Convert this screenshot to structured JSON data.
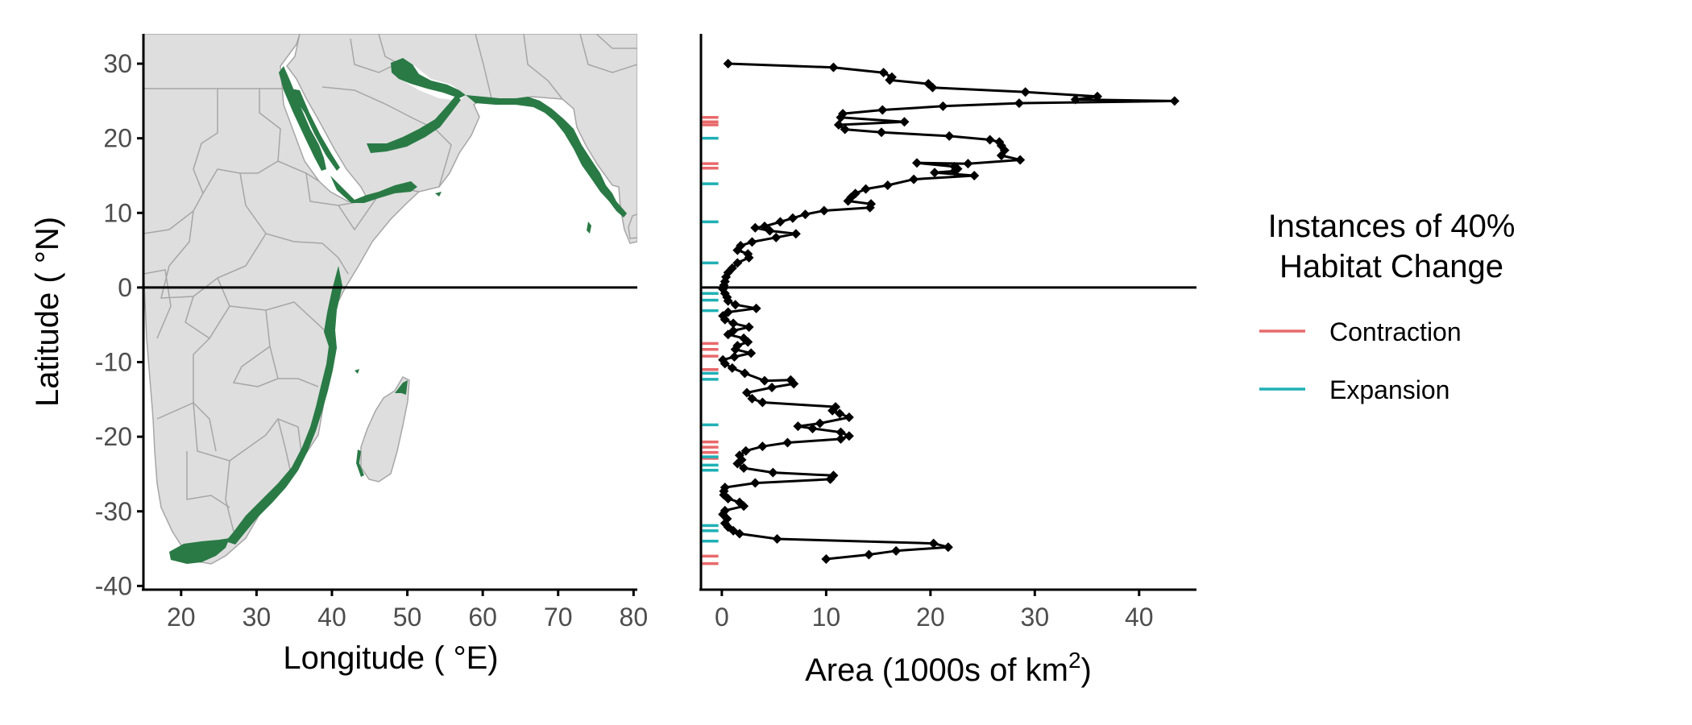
{
  "colors": {
    "land": "#dedede",
    "border": "#a6a6a6",
    "habitat": "#2a7a46",
    "line": "#000000",
    "contraction": "#e8696b",
    "expansion": "#1fb0b5"
  },
  "map": {
    "xlabel": "Longitude ( °E)",
    "ylabel": "Latitude ( °N)",
    "xticks": [
      20,
      30,
      40,
      50,
      60,
      70,
      80
    ],
    "yticks": [
      30,
      20,
      10,
      0,
      -10,
      -20,
      -30,
      -40
    ],
    "xlim": [
      15,
      80.5
    ],
    "ylim": [
      -40.5,
      34
    ]
  },
  "chart_data": {
    "type": "line",
    "xlabel": "Area (1000s of km",
    "xlabel_sup": "2",
    "xlabel_close": ")",
    "xticks": [
      0,
      10,
      20,
      30,
      40
    ],
    "xlim": [
      -2,
      45.5
    ],
    "ylim": [
      -40.5,
      34
    ],
    "reference_line": 0,
    "series": [
      {
        "name": "Area",
        "points": [
          [
            0.6,
            30
          ],
          [
            10.7,
            29.5
          ],
          [
            15.5,
            28.8
          ],
          [
            16.3,
            28.2
          ],
          [
            16.1,
            27.8
          ],
          [
            19.8,
            27.3
          ],
          [
            20.2,
            26.8
          ],
          [
            29.1,
            26.2
          ],
          [
            36,
            25.6
          ],
          [
            33.9,
            25.2
          ],
          [
            43.4,
            25
          ],
          [
            28.5,
            24.7
          ],
          [
            21.2,
            24.3
          ],
          [
            15.4,
            23.8
          ],
          [
            11.6,
            23.3
          ],
          [
            11.4,
            22.8
          ],
          [
            17.5,
            22.2
          ],
          [
            11.2,
            21.8
          ],
          [
            11.8,
            21.2
          ],
          [
            15.3,
            20.8
          ],
          [
            21.8,
            20.3
          ],
          [
            25.7,
            19.8
          ],
          [
            26.6,
            19.5
          ],
          [
            26.8,
            19
          ],
          [
            27.1,
            18.4
          ],
          [
            26.8,
            17.7
          ],
          [
            28.6,
            17.1
          ],
          [
            23.6,
            16.6
          ],
          [
            18.7,
            16.7
          ],
          [
            22.3,
            16.2
          ],
          [
            22.6,
            15.9
          ],
          [
            22.3,
            15.6
          ],
          [
            20.4,
            15.4
          ],
          [
            24.2,
            15
          ],
          [
            18.4,
            14.5
          ],
          [
            15.9,
            13.7
          ],
          [
            13.8,
            13.2
          ],
          [
            12.8,
            12.6
          ],
          [
            12.4,
            12.1
          ],
          [
            12.1,
            11.6
          ],
          [
            14.3,
            11.2
          ],
          [
            14.2,
            10.7
          ],
          [
            9.8,
            10.3
          ],
          [
            8,
            9.8
          ],
          [
            6.8,
            9.3
          ],
          [
            5.6,
            8.8
          ],
          [
            4.1,
            8.2
          ],
          [
            3.2,
            8
          ],
          [
            4.6,
            7.6
          ],
          [
            7.1,
            7.2
          ],
          [
            5.2,
            6.7
          ],
          [
            2.9,
            6.1
          ],
          [
            1.8,
            5.6
          ],
          [
            1.5,
            5
          ],
          [
            2.5,
            4.5
          ],
          [
            2.6,
            4
          ],
          [
            1.5,
            3.3
          ],
          [
            1,
            2.6
          ],
          [
            0.6,
            2
          ],
          [
            0.4,
            1.4
          ],
          [
            0.3,
            0.8
          ],
          [
            0.2,
            0.3
          ],
          [
            0.1,
            -0.2
          ],
          [
            0.3,
            -0.8
          ],
          [
            0.5,
            -1.3
          ],
          [
            0.6,
            -1.8
          ],
          [
            1.3,
            -2.3
          ],
          [
            3.3,
            -2.8
          ],
          [
            0.6,
            -3.3
          ],
          [
            0.1,
            -3.8
          ],
          [
            0.3,
            -4.3
          ],
          [
            1.1,
            -4.8
          ],
          [
            2.6,
            -5.3
          ],
          [
            1.1,
            -5.8
          ],
          [
            0.6,
            -6.3
          ],
          [
            2.1,
            -6.8
          ],
          [
            2.5,
            -7.3
          ],
          [
            1.5,
            -7.8
          ],
          [
            1.3,
            -8.3
          ],
          [
            2.8,
            -8.8
          ],
          [
            1.2,
            -9.3
          ],
          [
            0.1,
            -9.7
          ],
          [
            0.3,
            -10.2
          ],
          [
            1,
            -10.8
          ],
          [
            2.2,
            -11.5
          ],
          [
            4.1,
            -12.5
          ],
          [
            6.6,
            -12.4
          ],
          [
            6.9,
            -12.9
          ],
          [
            4.8,
            -13.4
          ],
          [
            2.4,
            -14.1
          ],
          [
            2.9,
            -14.9
          ],
          [
            3.9,
            -15.4
          ],
          [
            10.9,
            -16
          ],
          [
            10.6,
            -16.5
          ],
          [
            11.3,
            -16.9
          ],
          [
            12.2,
            -17.4
          ],
          [
            9.4,
            -18.2
          ],
          [
            7.3,
            -18.6
          ],
          [
            8.7,
            -18.9
          ],
          [
            11.4,
            -19.4
          ],
          [
            12.2,
            -19.9
          ],
          [
            11.4,
            -20.3
          ],
          [
            6.3,
            -20.8
          ],
          [
            3.9,
            -21.3
          ],
          [
            2.3,
            -21.9
          ],
          [
            1.7,
            -22.5
          ],
          [
            1.9,
            -23.1
          ],
          [
            1.5,
            -23.6
          ],
          [
            2.1,
            -24.2
          ],
          [
            4.9,
            -24.8
          ],
          [
            10.7,
            -25.2
          ],
          [
            10.4,
            -25.7
          ],
          [
            3.2,
            -26.2
          ],
          [
            0.3,
            -26.8
          ],
          [
            0.2,
            -27.3
          ],
          [
            0.2,
            -27.8
          ],
          [
            0.6,
            -28.3
          ],
          [
            1.7,
            -28.8
          ],
          [
            2.1,
            -29.3
          ],
          [
            0.3,
            -29.9
          ],
          [
            0.1,
            -30.4
          ],
          [
            0.5,
            -31
          ],
          [
            0.3,
            -31.6
          ],
          [
            0.6,
            -32.1
          ],
          [
            1.1,
            -32.6
          ],
          [
            1.7,
            -33
          ],
          [
            5.3,
            -33.7
          ],
          [
            20.3,
            -34.3
          ],
          [
            21.7,
            -34.8
          ],
          [
            16.7,
            -35.3
          ],
          [
            14.1,
            -35.8
          ],
          [
            10,
            -36.4
          ]
        ]
      }
    ],
    "rug": {
      "x": -1.1,
      "contraction": [
        22.8,
        22.2,
        21.8,
        16.6,
        16,
        -7.5,
        -8.3,
        -9.2,
        -11,
        -20.7,
        -21.4,
        -22.1,
        -22.9,
        -36,
        -37
      ],
      "expansion": [
        20,
        13.9,
        8.8,
        3.3,
        -0.8,
        -1.7,
        -3.1,
        -11.5,
        -12.3,
        -18.4,
        -22.7,
        -23.8,
        -24.5,
        -31.9,
        -32.6,
        -34
      ]
    }
  },
  "legend": {
    "title_line1": "Instances of 40%",
    "title_line2": "Habitat Change",
    "items": [
      {
        "label": "Contraction",
        "key": "contraction"
      },
      {
        "label": "Expansion",
        "key": "expansion"
      }
    ]
  }
}
